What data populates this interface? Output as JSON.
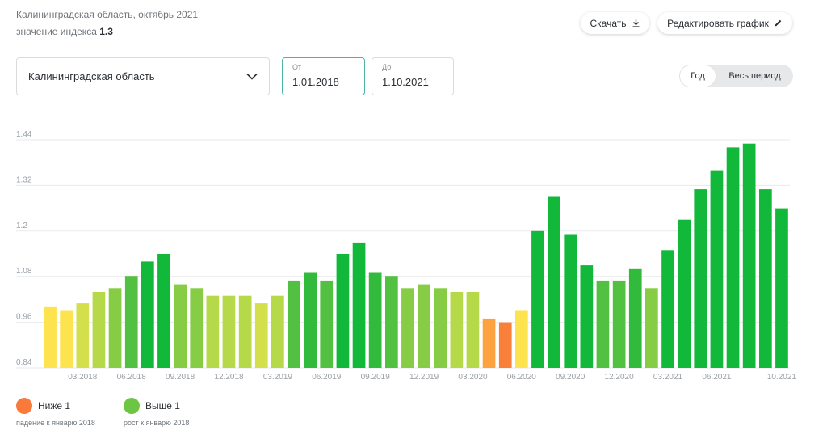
{
  "header": {
    "subtitle": "Калининградская область, октябрь 2021",
    "index_label": "значение индекса",
    "index_value": "1.3"
  },
  "toolbar": {
    "download_label": "Скачать",
    "edit_label": "Редактировать график"
  },
  "filters": {
    "region": "Калининградская область",
    "from_label": "От",
    "from_value": "1.01.2018",
    "to_label": "До",
    "to_value": "1.10.2021"
  },
  "period_toggle": {
    "options": [
      "Год",
      "Весь период"
    ],
    "selected": "Год"
  },
  "legend": {
    "below": {
      "label": "Ниже 1",
      "note": "падение к январю 2018",
      "color": "#fa7a3c"
    },
    "above": {
      "label": "Выше 1",
      "note": "рост к январю 2018",
      "color": "#6cc644"
    }
  },
  "chart_data": {
    "type": "bar",
    "title": "",
    "xlabel": "",
    "ylabel": "",
    "ylim": [
      0.84,
      1.44
    ],
    "yticks": [
      "0.84",
      "0.96",
      "1.08",
      "1.2",
      "1.32",
      "1.44"
    ],
    "grid": true,
    "categories": [
      "01.2018",
      "02.2018",
      "03.2018",
      "04.2018",
      "05.2018",
      "06.2018",
      "07.2018",
      "08.2018",
      "09.2018",
      "10.2018",
      "11.2018",
      "12.2018",
      "01.2019",
      "02.2019",
      "03.2019",
      "04.2019",
      "05.2019",
      "06.2019",
      "07.2019",
      "08.2019",
      "09.2019",
      "10.2019",
      "11.2019",
      "12.2019",
      "01.2020",
      "02.2020",
      "03.2020",
      "04.2020",
      "05.2020",
      "06.2020",
      "07.2020",
      "08.2020",
      "09.2020",
      "10.2020",
      "11.2020",
      "12.2020",
      "01.2021",
      "02.2021",
      "03.2021",
      "04.2021",
      "05.2021",
      "06.2021",
      "07.2021",
      "08.2021",
      "09.2021",
      "10.2021"
    ],
    "xtick_labels": [
      "03.2018",
      "06.2018",
      "09.2018",
      "12.2018",
      "03.2019",
      "06.2019",
      "09.2019",
      "12.2019",
      "03.2020",
      "06.2020",
      "09.2020",
      "12.2020",
      "03.2021",
      "06.2021",
      "10.2021"
    ],
    "values": [
      1.0,
      0.99,
      1.01,
      1.04,
      1.05,
      1.08,
      1.12,
      1.14,
      1.06,
      1.05,
      1.03,
      1.03,
      1.03,
      1.01,
      1.03,
      1.07,
      1.09,
      1.07,
      1.14,
      1.17,
      1.09,
      1.08,
      1.05,
      1.06,
      1.05,
      1.04,
      1.04,
      0.97,
      0.96,
      0.99,
      1.2,
      1.29,
      1.19,
      1.11,
      1.07,
      1.07,
      1.1,
      1.05,
      1.15,
      1.23,
      1.31,
      1.36,
      1.42,
      1.43,
      1.31,
      1.26
    ]
  }
}
